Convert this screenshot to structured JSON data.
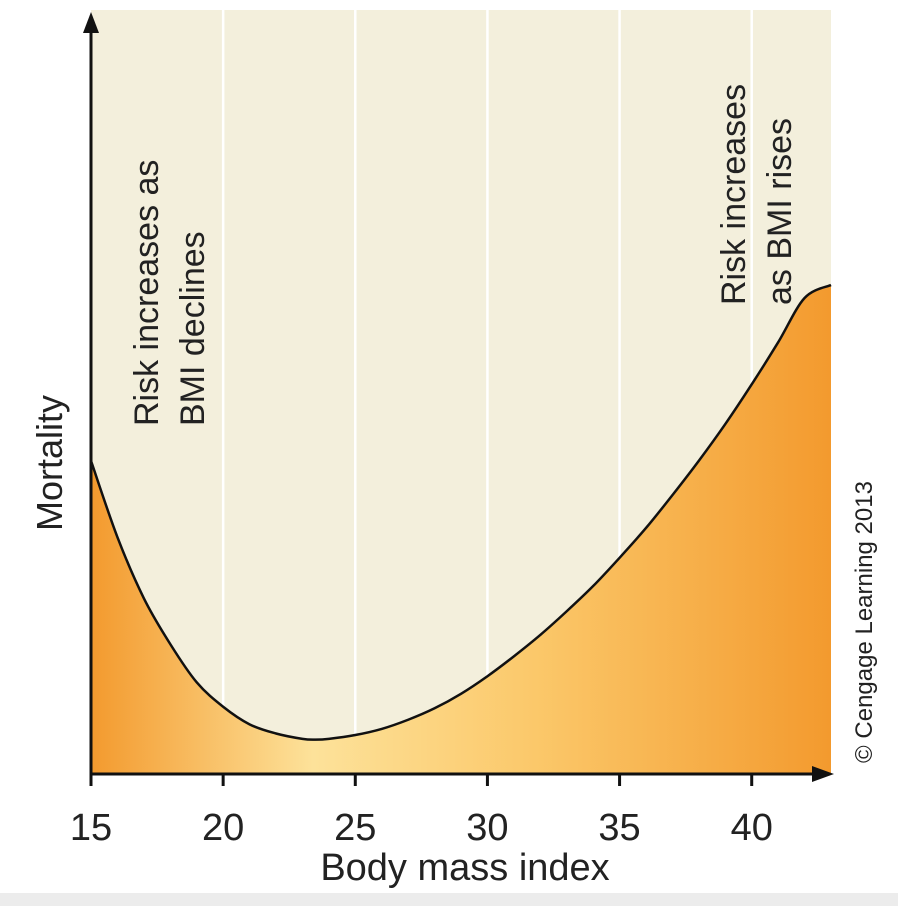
{
  "chart_data": {
    "type": "area",
    "title": "",
    "xlabel": "Body mass index",
    "ylabel": "Mortality",
    "x_ticks": [
      15,
      20,
      25,
      30,
      35,
      40
    ],
    "xlim": [
      15,
      43
    ],
    "ylim": [
      0,
      100
    ],
    "y_ticks_shown": false,
    "grid": "vertical",
    "series": [
      {
        "x": [
          15,
          16,
          17,
          18,
          19,
          20,
          21,
          22,
          23,
          23.5,
          24,
          25,
          26,
          27,
          28,
          29,
          30,
          31,
          32,
          33,
          34,
          35,
          36,
          37,
          38,
          39,
          40,
          41,
          42,
          43
        ],
        "y": [
          41,
          31,
          23,
          17,
          12,
          8.8,
          6.5,
          5.3,
          4.6,
          4.5,
          4.6,
          5.1,
          5.9,
          7.1,
          8.6,
          10.5,
          12.8,
          15.4,
          18.2,
          21.3,
          24.6,
          28.3,
          32.2,
          36.5,
          41.0,
          45.8,
          51.0,
          56.5,
          62.3,
          64.0
        ]
      }
    ],
    "annotations": [
      {
        "text_lines": [
          "Risk increases as",
          "BMI declines"
        ],
        "orientation": "vertical"
      },
      {
        "text_lines": [
          "Risk increases",
          "as BMI rises"
        ],
        "orientation": "vertical"
      }
    ],
    "credit": "© Cengage Learning 2013",
    "colors": {
      "background": "#f3efdc",
      "gridline": "#ffffff",
      "fill_edge": "#f39a2e",
      "fill_center": "#fde29a",
      "curve": "#111111",
      "axis": "#111111"
    }
  }
}
